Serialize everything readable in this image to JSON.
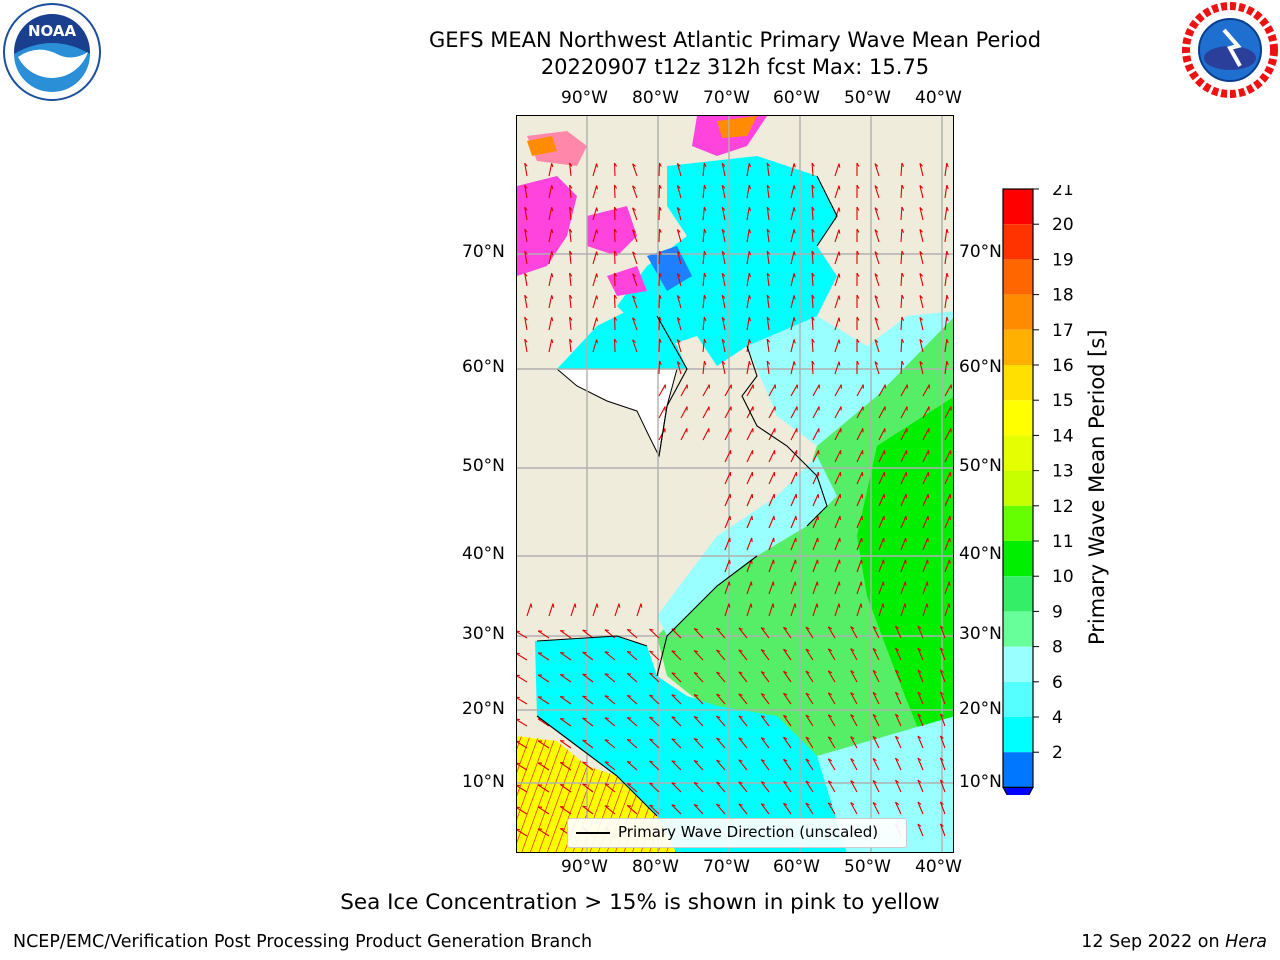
{
  "title": {
    "line1": "GEFS MEAN Northwest Atlantic Primary Wave Mean Period",
    "line2": "20220907 t12z 312h fcst   Max: 15.75"
  },
  "map": {
    "top_lon_labels": [
      "90°W",
      "80°W",
      "70°W",
      "60°W",
      "50°W",
      "40°W"
    ],
    "bottom_lon_labels": [
      "90°W",
      "80°W",
      "70°W",
      "60°W",
      "50°W",
      "40°W"
    ],
    "left_lat_labels": [
      "70°N",
      "60°N",
      "50°N",
      "40°N",
      "30°N",
      "20°N",
      "10°N"
    ],
    "right_lat_labels": [
      "70°N",
      "60°N",
      "50°N",
      "40°N",
      "30°N",
      "20°N",
      "10°N"
    ],
    "legend_text": "Primary Wave Direction (unscaled)",
    "land_color": "#efecdc",
    "grid_color": "#b0b0b0",
    "arrow_color": "#e00000"
  },
  "colorbar": {
    "label": "Primary Wave Mean Period [s]",
    "ticks": [
      "21",
      "20",
      "19",
      "18",
      "17",
      "16",
      "15",
      "14",
      "13",
      "12",
      "11",
      "10",
      "9",
      "8",
      "6",
      "4",
      "2"
    ],
    "colors": [
      "#ff0000",
      "#ff3300",
      "#ff6600",
      "#ff8c00",
      "#ffb000",
      "#ffe000",
      "#ffff00",
      "#e6ff00",
      "#c8ff00",
      "#66ff00",
      "#00ee00",
      "#33ee66",
      "#66ff99",
      "#99ffff",
      "#55ffff",
      "#00ffff",
      "#0077ff"
    ],
    "under_color": "#0000ff"
  },
  "note": "Sea Ice Concentration > 15% is shown in pink to yellow",
  "footer": {
    "left": "NCEP/EMC/Verification Post Processing Product Generation Branch",
    "right_date": "12 Sep 2022 on ",
    "right_machine": "Hera"
  },
  "logos": {
    "noaa": "NOAA",
    "nws": "NATIONAL WEATHER SERVICE"
  }
}
